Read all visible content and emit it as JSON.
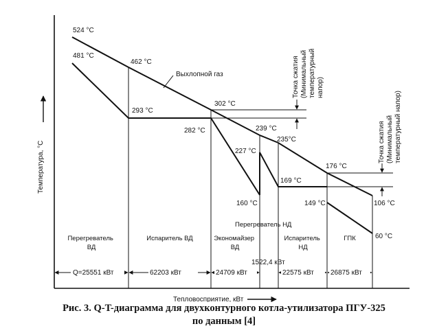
{
  "axes": {
    "y_label": "Температура, °C",
    "x_label": "Тепловосприятие, кВт"
  },
  "temperatures": {
    "gas_inlet": "524 °C",
    "superheater_hp_out": "481 °C",
    "gas_after_sh_hp": "462 °C",
    "evap_hp": "293 °C",
    "gas_pinch_hp": "302 °C",
    "econ_hp_out": "282 °C",
    "gas_after_econ_hp": "239 °C",
    "superheater_lp_out": "227 °C",
    "gas_pinch_lp": "235°C",
    "econ_hp_in": "160 °C",
    "evap_lp": "169 °C",
    "gas_after_evap_lp": "176 °C",
    "gpk_out": "149 °C",
    "gas_outlet": "106 °C",
    "gpk_in": "60 °C"
  },
  "labels": {
    "exhaust_gas": "Выхлопной   газ",
    "pinch_hp": [
      "Точка сжатия",
      "(Минимальный",
      "температурный",
      "напор)"
    ],
    "pinch_lp": [
      "Точка сжатия",
      "(Минимальный",
      "температурный напор)"
    ],
    "sh_lp": "Перегреватель НД"
  },
  "sections": [
    {
      "name": [
        "Перегреватель",
        "ВД"
      ],
      "q": "Q=25551 кВт"
    },
    {
      "name": [
        "Испаритель ВД"
      ],
      "q": "62203    кВт"
    },
    {
      "name": [
        "Экономайзер",
        "ВД"
      ],
      "q": "24709    кВт"
    },
    {
      "name": [],
      "q": "1522,4   кВт"
    },
    {
      "name": [
        "Испаритель",
        "НД"
      ],
      "q": "22575   кВт"
    },
    {
      "name": [
        "ГПК"
      ],
      "q": "26875   кВт"
    }
  ],
  "caption": {
    "line1": "Рис. 3. Q-T-диаграмма для двухконтурного котла-утилизатора ПГУ-325",
    "line2": "по данным [4]"
  }
}
